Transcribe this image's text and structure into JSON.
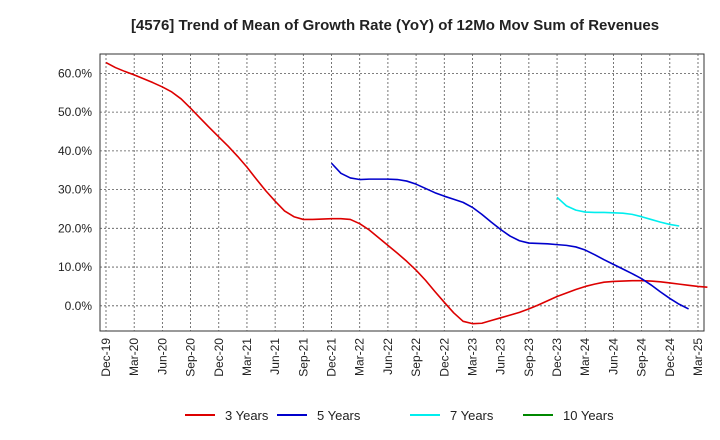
{
  "chart_data": {
    "type": "line",
    "title": "[4576]  Trend of Mean of Growth Rate (YoY) of 12Mo Mov Sum of Revenues",
    "xlabel": "",
    "ylabel": "",
    "ylim": [
      -6.5,
      65
    ],
    "grid": true,
    "legend_position": "bottom",
    "x_tick_labels": [
      "Dec-19",
      "Mar-20",
      "Jun-20",
      "Sep-20",
      "Dec-20",
      "Mar-21",
      "Jun-21",
      "Sep-21",
      "Dec-21",
      "Mar-22",
      "Jun-22",
      "Sep-22",
      "Dec-22",
      "Mar-23",
      "Jun-23",
      "Sep-23",
      "Dec-23",
      "Mar-24",
      "Jun-24",
      "Sep-24",
      "Dec-24",
      "Mar-25"
    ],
    "y_ticks": [
      0,
      10,
      20,
      30,
      40,
      50,
      60
    ],
    "y_tick_labels": [
      "0.0%",
      "10.0%",
      "20.0%",
      "30.0%",
      "40.0%",
      "50.0%",
      "60.0%"
    ],
    "series": [
      {
        "name": "3 Years",
        "color": "#dd0000",
        "values": [
          62.8,
          61.5,
          60.5,
          59.6,
          58.6,
          57.6,
          56.5,
          55.2,
          53.4,
          51.0,
          48.5,
          46.0,
          43.6,
          41.2,
          38.6,
          35.8,
          32.7,
          29.7,
          27.0,
          24.5,
          23.0,
          22.3,
          22.3,
          22.4,
          22.5,
          22.5,
          22.3,
          21.2,
          19.6,
          17.6,
          15.6,
          13.6,
          11.5,
          9.2,
          6.6,
          3.7,
          0.9,
          -1.8,
          -4.0,
          -4.6,
          -4.5,
          -3.8,
          -3.1,
          -2.4,
          -1.7,
          -0.8,
          0.2,
          1.3,
          2.4,
          3.3,
          4.2,
          5.0,
          5.6,
          6.1,
          6.3,
          6.4,
          6.5,
          6.5,
          6.4,
          6.2,
          5.9,
          5.6,
          5.3,
          5.0,
          4.8
        ]
      },
      {
        "name": "5 Years",
        "color": "#0000cc",
        "values": [
          null,
          null,
          null,
          null,
          null,
          null,
          null,
          null,
          null,
          null,
          null,
          null,
          null,
          null,
          null,
          null,
          null,
          null,
          null,
          null,
          null,
          null,
          null,
          null,
          36.8,
          34.2,
          33.0,
          32.6,
          32.7,
          32.7,
          32.7,
          32.6,
          32.2,
          31.4,
          30.3,
          29.2,
          28.3,
          27.5,
          26.7,
          25.4,
          23.6,
          21.6,
          19.7,
          18.0,
          16.8,
          16.2,
          16.1,
          16.0,
          15.8,
          15.6,
          15.2,
          14.4,
          13.2,
          11.9,
          10.7,
          9.5,
          8.3,
          7.0,
          5.4,
          3.6,
          1.9,
          0.4,
          -0.8
        ]
      },
      {
        "name": "7 Years",
        "color": "#00eeee",
        "values": [
          null,
          null,
          null,
          null,
          null,
          null,
          null,
          null,
          null,
          null,
          null,
          null,
          null,
          null,
          null,
          null,
          null,
          null,
          null,
          null,
          null,
          null,
          null,
          null,
          null,
          null,
          null,
          null,
          null,
          null,
          null,
          null,
          null,
          null,
          null,
          null,
          null,
          null,
          null,
          null,
          null,
          null,
          null,
          null,
          null,
          null,
          null,
          null,
          28.0,
          25.8,
          24.7,
          24.2,
          24.1,
          24.1,
          24.0,
          23.9,
          23.6,
          23.0,
          22.3,
          21.6,
          21.0,
          20.6
        ]
      },
      {
        "name": "10 Years",
        "color": "#008800",
        "values": []
      }
    ]
  }
}
